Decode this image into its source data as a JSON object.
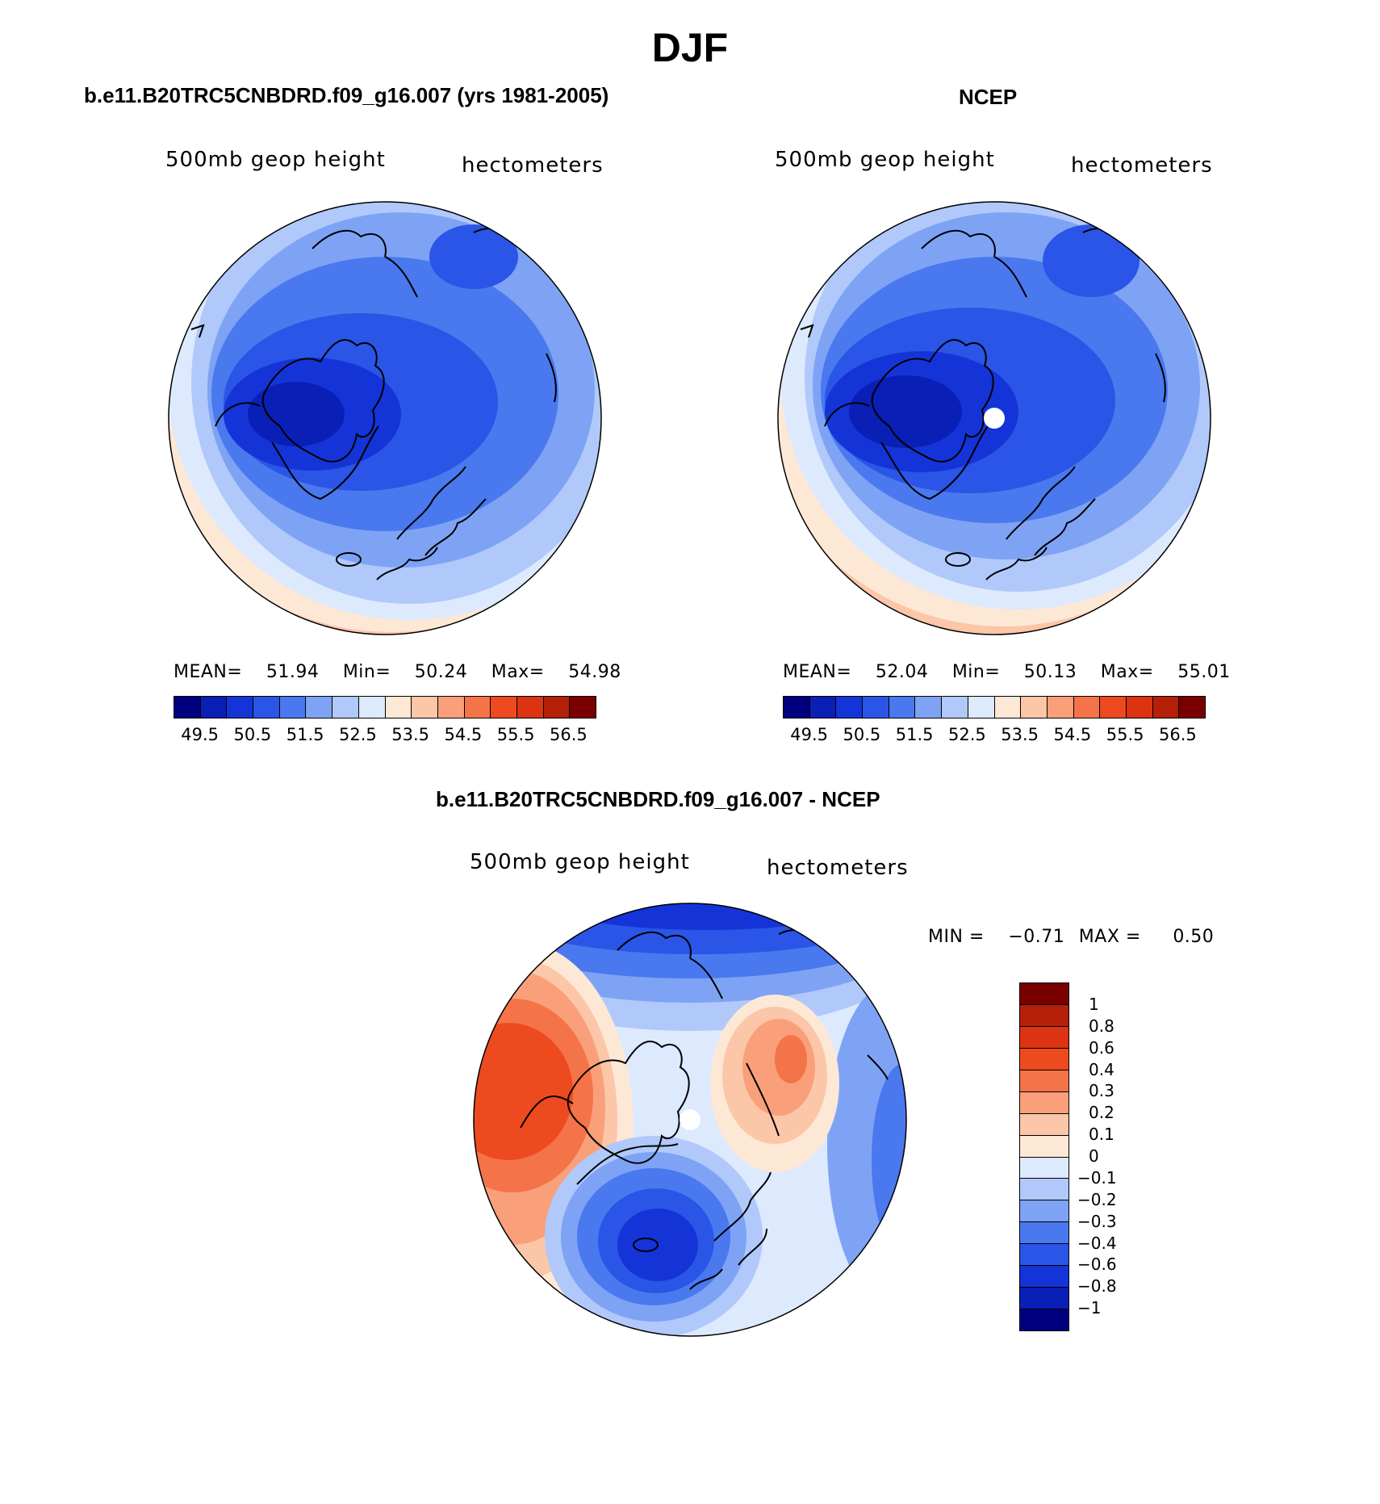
{
  "title": "DJF",
  "panels": {
    "model": {
      "subtitle": "b.e11.B20TRC5CNBDRD.f09_g16.007 (yrs 1981-2005)",
      "left_label": "500mb geop height",
      "right_label": "hectometers",
      "stats": {
        "mean_label": "MEAN=",
        "mean": "51.94",
        "min_label": "Min=",
        "min": "50.24",
        "max_label": "Max=",
        "max": "54.98"
      }
    },
    "obs": {
      "subtitle": "NCEP",
      "left_label": "500mb geop height",
      "right_label": "hectometers",
      "stats": {
        "mean_label": "MEAN=",
        "mean": "52.04",
        "min_label": "Min=",
        "min": "50.13",
        "max_label": "Max=",
        "max": "55.01"
      }
    },
    "diff": {
      "subtitle": "b.e11.B20TRC5CNBDRD.f09_g16.007 - NCEP",
      "left_label": "500mb geop height",
      "right_label": "hectometers",
      "stats": {
        "min_label": "MIN =",
        "min": "−0.71",
        "max_label": "MAX =",
        "max": "0.50"
      }
    }
  },
  "colorbar_abs": {
    "colors": [
      "#00007f",
      "#0a1fb5",
      "#1434d8",
      "#2a55e6",
      "#4a78ee",
      "#7ea3f5",
      "#b0c9fa",
      "#dde9fd",
      "#fde8d6",
      "#fcc6a8",
      "#f9a07a",
      "#f57349",
      "#ee4a20",
      "#dc3412",
      "#b52008",
      "#7a0000"
    ],
    "tick_labels": [
      "49.5",
      "50.5",
      "51.5",
      "52.5",
      "53.5",
      "54.5",
      "55.5",
      "56.5"
    ]
  },
  "colorbar_diff": {
    "colors": [
      "#00007f",
      "#0a1fb5",
      "#1434d8",
      "#2a55e6",
      "#4a78ee",
      "#7ea3f5",
      "#b0c9fa",
      "#dde9fd",
      "#fde8d6",
      "#fcc6a8",
      "#f9a07a",
      "#f57349",
      "#ee4a20",
      "#dc3412",
      "#b52008",
      "#7a0000"
    ],
    "tick_labels": [
      "1",
      "0.8",
      "0.6",
      "0.4",
      "0.3",
      "0.2",
      "0.1",
      "0",
      "−0.1",
      "−0.2",
      "−0.3",
      "−0.4",
      "−0.6",
      "−0.8",
      "−1"
    ]
  }
}
